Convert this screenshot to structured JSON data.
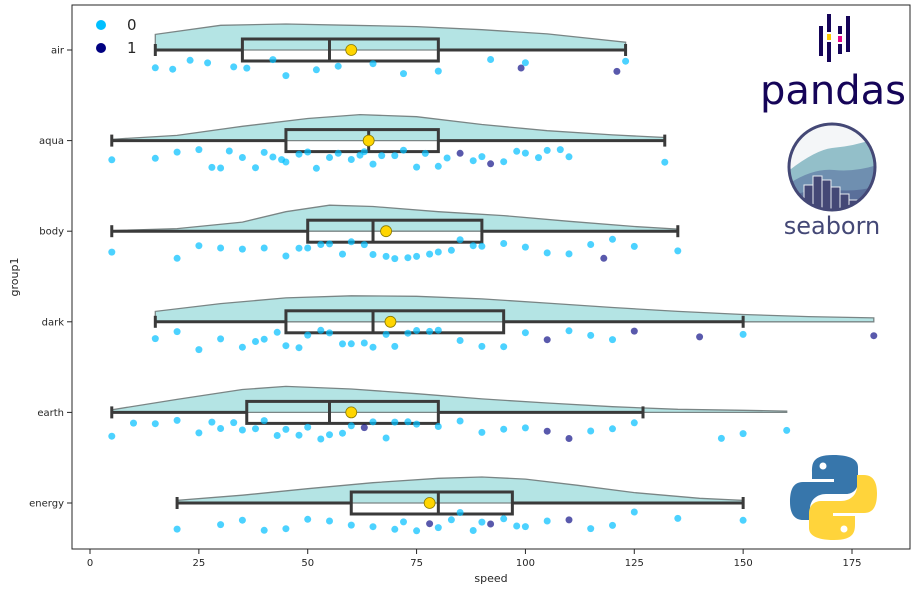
{
  "chart_data": {
    "type": "raincloud",
    "xlabel": "speed",
    "ylabel": "group1",
    "xlim": [
      -8,
      188
    ],
    "x_ticks": [
      0,
      25,
      50,
      75,
      100,
      125,
      150,
      175
    ],
    "categories": [
      "air",
      "aqua",
      "body",
      "dark",
      "earth",
      "energy"
    ],
    "hue": {
      "legend_position": "top-left",
      "levels": [
        {
          "label": "0",
          "color": "#00bfff"
        },
        {
          "label": "1",
          "color": "#000080"
        }
      ]
    },
    "colors": {
      "violin_fill": "#b4e4e4",
      "violin_edge": "#7a8585",
      "box_edge": "#3a3a3a",
      "mean_marker": "#ffd500",
      "axis": "#262626"
    },
    "groups": [
      {
        "name": "air",
        "box": {
          "whislo": 15,
          "q1": 35,
          "med": 55,
          "q3": 80,
          "whishi": 123
        },
        "mean": 60,
        "density": [
          [
            15,
            0.6
          ],
          [
            30,
            0.95
          ],
          [
            45,
            1.0
          ],
          [
            60,
            0.95
          ],
          [
            75,
            0.9
          ],
          [
            90,
            0.78
          ],
          [
            105,
            0.62
          ],
          [
            123,
            0.3
          ]
        ],
        "points": [
          {
            "x": 15,
            "hue": 0
          },
          {
            "x": 19,
            "hue": 0
          },
          {
            "x": 23,
            "hue": 0
          },
          {
            "x": 27,
            "hue": 0
          },
          {
            "x": 33,
            "hue": 0
          },
          {
            "x": 36,
            "hue": 0
          },
          {
            "x": 42,
            "hue": 0
          },
          {
            "x": 45,
            "hue": 0
          },
          {
            "x": 52,
            "hue": 0
          },
          {
            "x": 57,
            "hue": 0
          },
          {
            "x": 65,
            "hue": 0
          },
          {
            "x": 72,
            "hue": 0
          },
          {
            "x": 80,
            "hue": 0
          },
          {
            "x": 92,
            "hue": 0
          },
          {
            "x": 99,
            "hue": 1
          },
          {
            "x": 100,
            "hue": 0
          },
          {
            "x": 121,
            "hue": 1
          },
          {
            "x": 123,
            "hue": 0
          }
        ]
      },
      {
        "name": "aqua",
        "box": {
          "whislo": 5,
          "q1": 45,
          "med": 64,
          "q3": 80,
          "whishi": 132
        },
        "mean": 64,
        "density": [
          [
            5,
            0.05
          ],
          [
            20,
            0.2
          ],
          [
            35,
            0.55
          ],
          [
            50,
            0.85
          ],
          [
            62,
            1.0
          ],
          [
            75,
            0.92
          ],
          [
            90,
            0.62
          ],
          [
            105,
            0.38
          ],
          [
            120,
            0.22
          ],
          [
            132,
            0.12
          ]
        ],
        "points": [
          {
            "x": 5,
            "hue": 0
          },
          {
            "x": 15,
            "hue": 0
          },
          {
            "x": 20,
            "hue": 0
          },
          {
            "x": 25,
            "hue": 0
          },
          {
            "x": 28,
            "hue": 0
          },
          {
            "x": 30,
            "hue": 0
          },
          {
            "x": 32,
            "hue": 0
          },
          {
            "x": 35,
            "hue": 0
          },
          {
            "x": 38,
            "hue": 0
          },
          {
            "x": 40,
            "hue": 0
          },
          {
            "x": 42,
            "hue": 0
          },
          {
            "x": 44,
            "hue": 0
          },
          {
            "x": 45,
            "hue": 0
          },
          {
            "x": 48,
            "hue": 0
          },
          {
            "x": 50,
            "hue": 0
          },
          {
            "x": 52,
            "hue": 0
          },
          {
            "x": 55,
            "hue": 0
          },
          {
            "x": 57,
            "hue": 0
          },
          {
            "x": 60,
            "hue": 0
          },
          {
            "x": 62,
            "hue": 0
          },
          {
            "x": 63,
            "hue": 0
          },
          {
            "x": 65,
            "hue": 0
          },
          {
            "x": 67,
            "hue": 0
          },
          {
            "x": 70,
            "hue": 0
          },
          {
            "x": 72,
            "hue": 0
          },
          {
            "x": 75,
            "hue": 0
          },
          {
            "x": 77,
            "hue": 0
          },
          {
            "x": 80,
            "hue": 0
          },
          {
            "x": 82,
            "hue": 0
          },
          {
            "x": 85,
            "hue": 1
          },
          {
            "x": 88,
            "hue": 0
          },
          {
            "x": 90,
            "hue": 0
          },
          {
            "x": 92,
            "hue": 1
          },
          {
            "x": 95,
            "hue": 0
          },
          {
            "x": 98,
            "hue": 0
          },
          {
            "x": 100,
            "hue": 0
          },
          {
            "x": 103,
            "hue": 0
          },
          {
            "x": 105,
            "hue": 0
          },
          {
            "x": 108,
            "hue": 0
          },
          {
            "x": 110,
            "hue": 0
          },
          {
            "x": 132,
            "hue": 0
          }
        ]
      },
      {
        "name": "body",
        "box": {
          "whislo": 5,
          "q1": 50,
          "med": 65,
          "q3": 90,
          "whishi": 135
        },
        "mean": 68,
        "density": [
          [
            5,
            0.02
          ],
          [
            20,
            0.1
          ],
          [
            35,
            0.35
          ],
          [
            45,
            0.75
          ],
          [
            55,
            1.0
          ],
          [
            65,
            0.95
          ],
          [
            80,
            0.75
          ],
          [
            95,
            0.6
          ],
          [
            110,
            0.38
          ],
          [
            125,
            0.18
          ],
          [
            135,
            0.08
          ]
        ],
        "points": [
          {
            "x": 5,
            "hue": 0
          },
          {
            "x": 20,
            "hue": 0
          },
          {
            "x": 25,
            "hue": 0
          },
          {
            "x": 30,
            "hue": 0
          },
          {
            "x": 35,
            "hue": 0
          },
          {
            "x": 40,
            "hue": 0
          },
          {
            "x": 45,
            "hue": 0
          },
          {
            "x": 48,
            "hue": 0
          },
          {
            "x": 50,
            "hue": 0
          },
          {
            "x": 53,
            "hue": 0
          },
          {
            "x": 55,
            "hue": 0
          },
          {
            "x": 58,
            "hue": 0
          },
          {
            "x": 60,
            "hue": 0
          },
          {
            "x": 63,
            "hue": 0
          },
          {
            "x": 65,
            "hue": 0
          },
          {
            "x": 68,
            "hue": 0
          },
          {
            "x": 70,
            "hue": 0
          },
          {
            "x": 73,
            "hue": 0
          },
          {
            "x": 75,
            "hue": 0
          },
          {
            "x": 78,
            "hue": 0
          },
          {
            "x": 80,
            "hue": 0
          },
          {
            "x": 83,
            "hue": 0
          },
          {
            "x": 85,
            "hue": 0
          },
          {
            "x": 88,
            "hue": 0
          },
          {
            "x": 90,
            "hue": 0
          },
          {
            "x": 95,
            "hue": 0
          },
          {
            "x": 100,
            "hue": 0
          },
          {
            "x": 105,
            "hue": 0
          },
          {
            "x": 110,
            "hue": 0
          },
          {
            "x": 115,
            "hue": 0
          },
          {
            "x": 118,
            "hue": 1
          },
          {
            "x": 120,
            "hue": 0
          },
          {
            "x": 125,
            "hue": 0
          },
          {
            "x": 135,
            "hue": 0
          }
        ]
      },
      {
        "name": "dark",
        "box": {
          "whislo": 15,
          "q1": 45,
          "med": 65,
          "q3": 95,
          "whishi": 150
        },
        "mean": 69,
        "density": [
          [
            15,
            0.4
          ],
          [
            30,
            0.7
          ],
          [
            45,
            0.92
          ],
          [
            60,
            1.0
          ],
          [
            75,
            0.98
          ],
          [
            90,
            0.88
          ],
          [
            105,
            0.72
          ],
          [
            120,
            0.55
          ],
          [
            135,
            0.4
          ],
          [
            150,
            0.28
          ],
          [
            165,
            0.2
          ],
          [
            180,
            0.15
          ]
        ],
        "points": [
          {
            "x": 15,
            "hue": 0
          },
          {
            "x": 20,
            "hue": 0
          },
          {
            "x": 25,
            "hue": 0
          },
          {
            "x": 30,
            "hue": 0
          },
          {
            "x": 35,
            "hue": 0
          },
          {
            "x": 38,
            "hue": 0
          },
          {
            "x": 40,
            "hue": 0
          },
          {
            "x": 43,
            "hue": 0
          },
          {
            "x": 45,
            "hue": 0
          },
          {
            "x": 48,
            "hue": 0
          },
          {
            "x": 50,
            "hue": 0
          },
          {
            "x": 53,
            "hue": 0
          },
          {
            "x": 55,
            "hue": 0
          },
          {
            "x": 58,
            "hue": 0
          },
          {
            "x": 60,
            "hue": 0
          },
          {
            "x": 63,
            "hue": 0
          },
          {
            "x": 65,
            "hue": 0
          },
          {
            "x": 68,
            "hue": 0
          },
          {
            "x": 70,
            "hue": 0
          },
          {
            "x": 73,
            "hue": 0
          },
          {
            "x": 75,
            "hue": 0
          },
          {
            "x": 78,
            "hue": 0
          },
          {
            "x": 80,
            "hue": 0
          },
          {
            "x": 85,
            "hue": 0
          },
          {
            "x": 90,
            "hue": 0
          },
          {
            "x": 95,
            "hue": 0
          },
          {
            "x": 100,
            "hue": 0
          },
          {
            "x": 105,
            "hue": 1
          },
          {
            "x": 110,
            "hue": 0
          },
          {
            "x": 115,
            "hue": 0
          },
          {
            "x": 120,
            "hue": 0
          },
          {
            "x": 125,
            "hue": 1
          },
          {
            "x": 140,
            "hue": 1
          },
          {
            "x": 150,
            "hue": 0
          },
          {
            "x": 180,
            "hue": 1
          }
        ]
      },
      {
        "name": "earth",
        "box": {
          "whislo": 5,
          "q1": 36,
          "med": 55,
          "q3": 80,
          "whishi": 127
        },
        "mean": 60,
        "density": [
          [
            5,
            0.1
          ],
          [
            20,
            0.5
          ],
          [
            35,
            0.88
          ],
          [
            45,
            1.0
          ],
          [
            60,
            0.9
          ],
          [
            75,
            0.72
          ],
          [
            90,
            0.52
          ],
          [
            105,
            0.36
          ],
          [
            120,
            0.22
          ],
          [
            135,
            0.12
          ],
          [
            150,
            0.08
          ],
          [
            160,
            0.05
          ]
        ],
        "points": [
          {
            "x": 5,
            "hue": 0
          },
          {
            "x": 10,
            "hue": 0
          },
          {
            "x": 15,
            "hue": 0
          },
          {
            "x": 20,
            "hue": 0
          },
          {
            "x": 25,
            "hue": 0
          },
          {
            "x": 28,
            "hue": 0
          },
          {
            "x": 30,
            "hue": 0
          },
          {
            "x": 33,
            "hue": 0
          },
          {
            "x": 35,
            "hue": 0
          },
          {
            "x": 38,
            "hue": 0
          },
          {
            "x": 40,
            "hue": 0
          },
          {
            "x": 43,
            "hue": 0
          },
          {
            "x": 45,
            "hue": 0
          },
          {
            "x": 48,
            "hue": 0
          },
          {
            "x": 50,
            "hue": 0
          },
          {
            "x": 53,
            "hue": 0
          },
          {
            "x": 55,
            "hue": 0
          },
          {
            "x": 58,
            "hue": 0
          },
          {
            "x": 60,
            "hue": 0
          },
          {
            "x": 63,
            "hue": 1
          },
          {
            "x": 65,
            "hue": 0
          },
          {
            "x": 68,
            "hue": 0
          },
          {
            "x": 70,
            "hue": 0
          },
          {
            "x": 73,
            "hue": 0
          },
          {
            "x": 75,
            "hue": 0
          },
          {
            "x": 80,
            "hue": 0
          },
          {
            "x": 85,
            "hue": 0
          },
          {
            "x": 90,
            "hue": 0
          },
          {
            "x": 95,
            "hue": 0
          },
          {
            "x": 100,
            "hue": 0
          },
          {
            "x": 105,
            "hue": 1
          },
          {
            "x": 110,
            "hue": 1
          },
          {
            "x": 115,
            "hue": 0
          },
          {
            "x": 120,
            "hue": 0
          },
          {
            "x": 125,
            "hue": 0
          },
          {
            "x": 145,
            "hue": 0
          },
          {
            "x": 150,
            "hue": 0
          },
          {
            "x": 160,
            "hue": 0
          }
        ]
      },
      {
        "name": "energy",
        "box": {
          "whislo": 20,
          "q1": 60,
          "med": 80,
          "q3": 97,
          "whishi": 150
        },
        "mean": 78,
        "density": [
          [
            20,
            0.1
          ],
          [
            35,
            0.3
          ],
          [
            50,
            0.55
          ],
          [
            65,
            0.78
          ],
          [
            80,
            0.95
          ],
          [
            90,
            1.0
          ],
          [
            100,
            0.92
          ],
          [
            112,
            0.68
          ],
          [
            125,
            0.4
          ],
          [
            140,
            0.18
          ],
          [
            150,
            0.1
          ]
        ],
        "points": [
          {
            "x": 20,
            "hue": 0
          },
          {
            "x": 30,
            "hue": 0
          },
          {
            "x": 35,
            "hue": 0
          },
          {
            "x": 40,
            "hue": 0
          },
          {
            "x": 45,
            "hue": 0
          },
          {
            "x": 50,
            "hue": 0
          },
          {
            "x": 55,
            "hue": 0
          },
          {
            "x": 60,
            "hue": 0
          },
          {
            "x": 65,
            "hue": 0
          },
          {
            "x": 70,
            "hue": 0
          },
          {
            "x": 72,
            "hue": 0
          },
          {
            "x": 75,
            "hue": 0
          },
          {
            "x": 78,
            "hue": 1
          },
          {
            "x": 80,
            "hue": 0
          },
          {
            "x": 83,
            "hue": 0
          },
          {
            "x": 85,
            "hue": 0
          },
          {
            "x": 88,
            "hue": 0
          },
          {
            "x": 90,
            "hue": 0
          },
          {
            "x": 92,
            "hue": 1
          },
          {
            "x": 95,
            "hue": 0
          },
          {
            "x": 98,
            "hue": 0
          },
          {
            "x": 100,
            "hue": 0
          },
          {
            "x": 105,
            "hue": 0
          },
          {
            "x": 110,
            "hue": 1
          },
          {
            "x": 115,
            "hue": 0
          },
          {
            "x": 120,
            "hue": 0
          },
          {
            "x": 125,
            "hue": 0
          },
          {
            "x": 135,
            "hue": 0
          },
          {
            "x": 150,
            "hue": 0
          }
        ]
      }
    ]
  },
  "logos": {
    "pandas": {
      "text": "pandas",
      "color": "#150458",
      "accent_colors": [
        "#ffca00",
        "#e70488"
      ]
    },
    "seaborn": {
      "text": "seaborn",
      "color": "#444876"
    },
    "python": {
      "blue": "#3776ab",
      "yellow": "#ffd43b"
    }
  }
}
